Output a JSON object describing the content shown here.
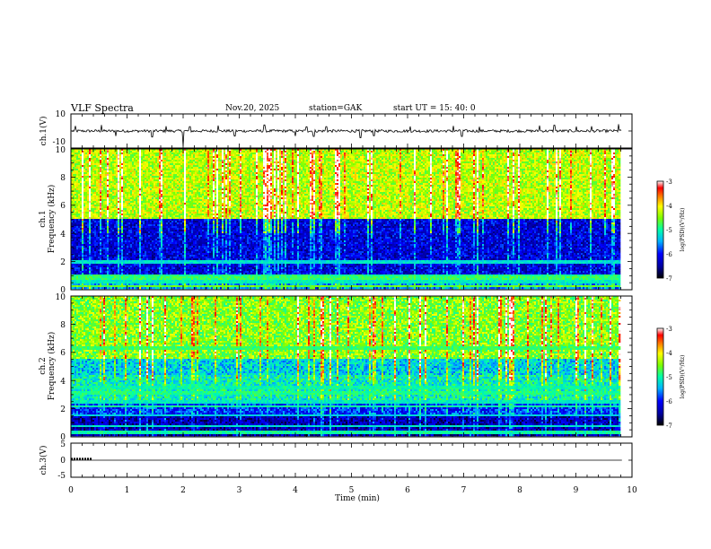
{
  "header": {
    "title": "VLF  Spectra",
    "date": "Nov.20, 2025",
    "station": "station=GAK",
    "start": "start  UT  =   15: 40: 0"
  },
  "chart_data": [
    {
      "id": "ch1-waveform",
      "type": "line",
      "ylabel": "ch.1(V)",
      "ylim": [
        -10,
        10
      ],
      "yticks": [
        "10",
        "-10"
      ],
      "x_range": [
        0,
        9.82
      ],
      "baseline": 0,
      "spikes": [
        {
          "x": 0.08,
          "y": 3
        },
        {
          "x": 0.54,
          "y": 3.5
        },
        {
          "x": 0.8,
          "y": -3
        },
        {
          "x": 1.45,
          "y": -3.5
        },
        {
          "x": 1.7,
          "y": 2.8
        },
        {
          "x": 2.0,
          "y": -9
        },
        {
          "x": 2.12,
          "y": 2.6
        },
        {
          "x": 2.62,
          "y": 3.2
        },
        {
          "x": 2.92,
          "y": -3
        },
        {
          "x": 3.45,
          "y": 3.5
        },
        {
          "x": 4.0,
          "y": -3
        },
        {
          "x": 4.2,
          "y": 2.5
        },
        {
          "x": 4.33,
          "y": -3.2
        },
        {
          "x": 4.55,
          "y": 2.6
        },
        {
          "x": 5.16,
          "y": -4
        },
        {
          "x": 5.4,
          "y": -2.8
        },
        {
          "x": 6.05,
          "y": 2.7
        },
        {
          "x": 6.82,
          "y": 3
        },
        {
          "x": 6.97,
          "y": -3.2
        },
        {
          "x": 7.28,
          "y": 2.5
        },
        {
          "x": 8.35,
          "y": 3.2
        },
        {
          "x": 8.62,
          "y": 3.4
        },
        {
          "x": 9.01,
          "y": 2.6
        },
        {
          "x": 9.28,
          "y": 2.8
        },
        {
          "x": 9.76,
          "y": 4
        }
      ]
    },
    {
      "id": "ch1-spectrogram",
      "type": "heatmap",
      "ylabel": "ch.1\nFrequency  (kHz)",
      "ylim": [
        0,
        10
      ],
      "yticks": [
        "0",
        "2",
        "4",
        "6",
        "8",
        "10"
      ],
      "x_range": [
        0,
        9.82
      ],
      "value_range": [
        -7,
        -3
      ],
      "bands": [
        {
          "from": 5,
          "to": 10,
          "level": -4.3
        },
        {
          "from": 1.1,
          "to": 5,
          "level": -6.2
        },
        {
          "from": 0,
          "to": 1.1,
          "level": -5.5
        }
      ],
      "lines": [
        {
          "f": 0.28,
          "level": -4.6
        },
        {
          "f": 0.55,
          "level": -5.1
        },
        {
          "f": 0.85,
          "level": -4.8
        },
        {
          "f": 1.05,
          "level": -4.9
        },
        {
          "f": 2.0,
          "level": -5.2
        }
      ],
      "colorbar": {
        "label": "log(PSD)(V²/Hz)",
        "ticks": [
          "-3",
          "-4",
          "-5",
          "-6",
          "-7"
        ]
      }
    },
    {
      "id": "ch2-spectrogram",
      "type": "heatmap",
      "ylabel": "ch.2\nFrequency  (kHz)",
      "ylim": [
        0,
        10
      ],
      "yticks": [
        "0",
        "2",
        "4",
        "6",
        "8",
        "10"
      ],
      "x_range": [
        0,
        9.82
      ],
      "value_range": [
        -7,
        -3
      ],
      "bands": [
        {
          "from": 5.6,
          "to": 10,
          "level": -4.5
        },
        {
          "from": 4.4,
          "to": 5.6,
          "level": -5.3
        },
        {
          "from": 2.6,
          "to": 4.4,
          "level": -5.1
        },
        {
          "from": 1.6,
          "to": 2.6,
          "level": -5.9
        },
        {
          "from": 0,
          "to": 1.6,
          "level": -6.4
        }
      ],
      "lines": [
        {
          "f": 0.3,
          "level": -5.0
        },
        {
          "f": 0.75,
          "level": -5.2
        },
        {
          "f": 1.5,
          "level": -5.3
        },
        {
          "f": 2.2,
          "level": -5.0
        },
        {
          "f": 2.5,
          "level": -5.1
        },
        {
          "f": 3.1,
          "level": -4.9
        },
        {
          "f": 3.5,
          "level": -5.0
        },
        {
          "f": 6.3,
          "level": -4.8
        }
      ],
      "colorbar": {
        "label": "log(PSD)(V²/Hz)",
        "ticks": [
          "-3",
          "-4",
          "-5",
          "-6",
          "-7"
        ]
      }
    },
    {
      "id": "ch3-waveform",
      "type": "line",
      "ylabel": "ch.3(V)",
      "ylim": [
        -5,
        5
      ],
      "yticks": [
        "5",
        "0",
        "-5"
      ],
      "x_range": [
        0,
        9.82
      ],
      "baseline": 0,
      "spikes": [],
      "burst": {
        "from": 0,
        "to": 0.38,
        "y": 0.4
      }
    }
  ],
  "xaxis": {
    "label": "Time  (min)",
    "xlim": [
      0,
      10
    ],
    "ticks": [
      "0",
      "1",
      "2",
      "3",
      "4",
      "5",
      "6",
      "7",
      "8",
      "9",
      "10"
    ]
  },
  "colors": {
    "frame": "#000000",
    "trace": "#000000",
    "colormap": [
      "#000000",
      "#0000a0",
      "#0000ff",
      "#00b4ff",
      "#00ffaa",
      "#7cff00",
      "#ffff00",
      "#ff8000",
      "#ff0000",
      "#ffffff"
    ]
  }
}
